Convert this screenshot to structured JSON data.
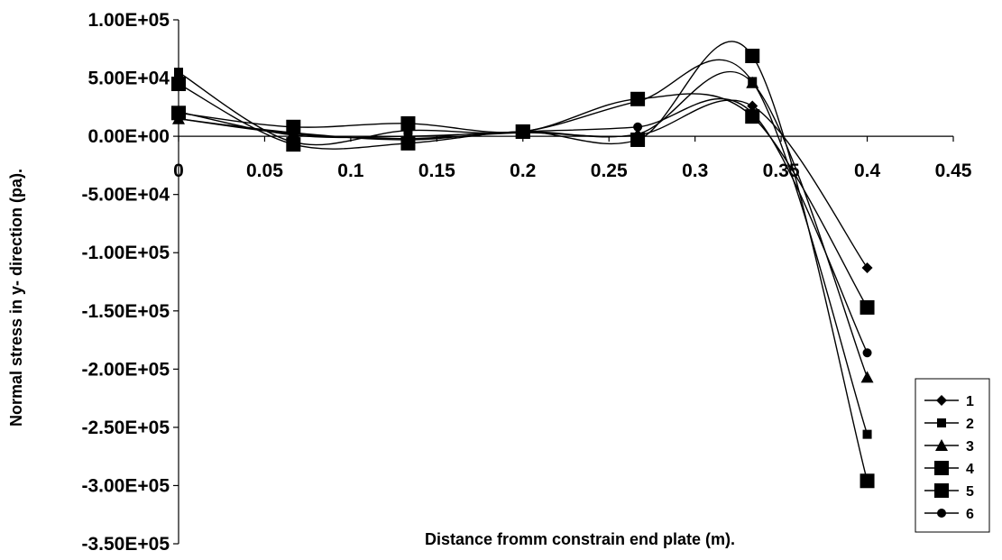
{
  "chart_data": {
    "type": "line",
    "title": "",
    "xlabel": "Distance fromm constrain end plate (m).",
    "ylabel": "Normal stress in y- direction (pa).",
    "xlim": [
      0,
      0.45
    ],
    "ylim": [
      -350000,
      100000
    ],
    "x_ticks": [
      0,
      0.05,
      0.1,
      0.15,
      0.2,
      0.25,
      0.3,
      0.35,
      0.4,
      0.45
    ],
    "x_tick_labels": [
      "0",
      "0.05",
      "0.1",
      "0.15",
      "0.2",
      "0.25",
      "0.3",
      "0.35",
      "0.4",
      "0.45"
    ],
    "y_ticks": [
      100000,
      50000,
      0,
      -50000,
      -100000,
      -150000,
      -200000,
      -250000,
      -300000,
      -350000
    ],
    "y_tick_labels": [
      "1.00E+05",
      "5.00E+04",
      "0.00E+00",
      "-5.00E+04",
      "-1.00E+05",
      "-1.50E+05",
      "-2.00E+05",
      "-2.50E+05",
      "-3.00E+05",
      "-3.50E+05"
    ],
    "grid": false,
    "legend_position": "right",
    "x": [
      0,
      0.0667,
      0.1333,
      0.2,
      0.2667,
      0.3333,
      0.4
    ],
    "series": [
      {
        "name": "1",
        "marker": "diamond",
        "values": [
          15000,
          2000,
          -2000,
          3000,
          1000,
          26000,
          -113000
        ]
      },
      {
        "name": "2",
        "marker": "small-square",
        "values": [
          55000,
          -5000,
          5000,
          4000,
          30000,
          47000,
          -256000
        ]
      },
      {
        "name": "3",
        "marker": "triangle",
        "values": [
          15000,
          3000,
          -3000,
          4000,
          2000,
          46000,
          -207000
        ]
      },
      {
        "name": "4",
        "marker": "square",
        "values": [
          20000,
          8000,
          11000,
          4000,
          32000,
          17000,
          -147000
        ]
      },
      {
        "name": "5",
        "marker": "square",
        "values": [
          45000,
          -7000,
          -6000,
          4000,
          -3000,
          69000,
          -296000
        ]
      },
      {
        "name": "6",
        "marker": "circle",
        "values": [
          21000,
          1000,
          0,
          4000,
          8000,
          20000,
          -186000
        ]
      }
    ]
  }
}
